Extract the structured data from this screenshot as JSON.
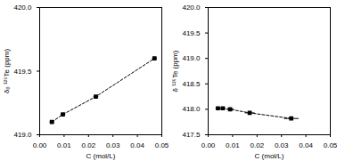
{
  "chart_data": [
    {
      "type": "scatter",
      "xlabel": "C (mol/L)",
      "ylabel": "δ₀ ¹²⁵Te (ppm)",
      "x": [
        0.005,
        0.0095,
        0.023,
        0.047
      ],
      "values": [
        419.1,
        419.16,
        419.3,
        419.6
      ],
      "xerr": [
        0.001,
        0.001,
        0.001,
        0.001
      ],
      "xlim": [
        0.0,
        0.05
      ],
      "ylim": [
        419.0,
        420.0
      ],
      "xticks": [
        {
          "value": 0,
          "label": "0.00"
        },
        0.01,
        0.02,
        0.03,
        0.04,
        0.05
      ],
      "yticks": [
        {
          "value": 419,
          "label": "419.0"
        },
        419.5,
        {
          "value": 420,
          "label": "420.0"
        }
      ],
      "color": "#000000",
      "marker": "square",
      "line_style": "dashed"
    },
    {
      "type": "scatter",
      "xlabel": "C (mol/L)",
      "ylabel": "δ ¹²⁵Te (ppm)",
      "x": [
        0.004,
        0.006,
        0.009,
        0.017,
        0.034
      ],
      "values": [
        418.02,
        418.02,
        418.0,
        417.93,
        417.82
      ],
      "xerr": [
        0.001,
        0.001,
        0.0015,
        0.002,
        0.003
      ],
      "xlim": [
        0.0,
        0.05
      ],
      "ylim": [
        417.5,
        420.0
      ],
      "xticks": [
        {
          "value": 0,
          "label": "0.00"
        },
        0.01,
        0.02,
        0.03,
        0.04,
        0.05
      ],
      "yticks": [
        417.5,
        {
          "value": 418,
          "label": "418.0"
        },
        418.5,
        {
          "value": 419,
          "label": "419.0"
        },
        419.5,
        {
          "value": 420,
          "label": "420.0"
        }
      ],
      "color": "#000000",
      "marker": "square",
      "line_style": "dashed"
    }
  ]
}
